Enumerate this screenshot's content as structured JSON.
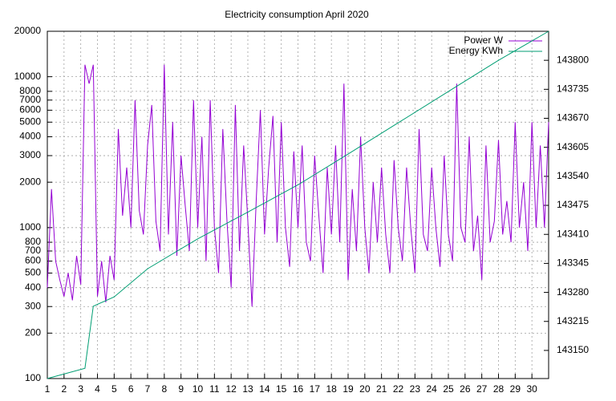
{
  "chart_data": {
    "type": "line",
    "title": "Electricity consumption April 2020",
    "xlim": [
      1,
      31
    ],
    "xticks": [
      1,
      2,
      3,
      4,
      5,
      6,
      7,
      8,
      9,
      10,
      11,
      12,
      13,
      14,
      15,
      16,
      17,
      18,
      19,
      20,
      21,
      22,
      23,
      24,
      25,
      26,
      27,
      28,
      29,
      30
    ],
    "ylim": [
      100,
      20000
    ],
    "log_y": true,
    "yticks": [
      100,
      200,
      300,
      400,
      500,
      600,
      700,
      800,
      1000,
      2000,
      3000,
      4000,
      5000,
      6000,
      7000,
      8000,
      10000,
      20000
    ],
    "y2lim": [
      143087,
      143865
    ],
    "y2ticks": [
      143150,
      143215,
      143280,
      143345,
      143410,
      143475,
      143540,
      143605,
      143670,
      143735,
      143800
    ],
    "grid": true,
    "legend": "top-right",
    "series": [
      {
        "name": "Power W",
        "color": "#9400d3",
        "x": [
          1,
          1.25,
          1.5,
          1.75,
          2,
          2.25,
          2.5,
          2.75,
          3,
          3.25,
          3.5,
          3.75,
          4,
          4.25,
          4.5,
          4.75,
          5,
          5.25,
          5.5,
          5.75,
          6,
          6.25,
          6.5,
          6.75,
          7,
          7.25,
          7.5,
          7.75,
          8,
          8.25,
          8.5,
          8.75,
          9,
          9.25,
          9.5,
          9.75,
          10,
          10.25,
          10.5,
          10.75,
          11,
          11.25,
          11.5,
          11.75,
          12,
          12.25,
          12.5,
          12.75,
          13,
          13.25,
          13.5,
          13.75,
          14,
          14.25,
          14.5,
          14.75,
          15,
          15.25,
          15.5,
          15.75,
          16,
          16.25,
          16.5,
          16.75,
          17,
          17.25,
          17.5,
          17.75,
          18,
          18.25,
          18.5,
          18.75,
          19,
          19.25,
          19.5,
          19.75,
          20,
          20.25,
          20.5,
          20.75,
          21,
          21.25,
          21.5,
          21.75,
          22,
          22.25,
          22.5,
          22.75,
          23,
          23.25,
          23.5,
          23.75,
          24,
          24.25,
          24.5,
          24.75,
          25,
          25.25,
          25.5,
          25.75,
          26,
          26.25,
          26.5,
          26.75,
          27,
          27.25,
          27.5,
          27.75,
          28,
          28.25,
          28.5,
          28.75,
          29,
          29.25,
          29.5,
          29.75,
          30,
          30.25,
          30.5,
          30.75,
          31
        ],
        "values": [
          400,
          1800,
          600,
          450,
          350,
          500,
          330,
          650,
          420,
          12000,
          9000,
          12000,
          350,
          600,
          320,
          650,
          450,
          4500,
          1200,
          2500,
          1000,
          7000,
          1300,
          900,
          3500,
          6500,
          1100,
          700,
          12000,
          900,
          5000,
          650,
          3000,
          1400,
          700,
          7000,
          1000,
          4000,
          600,
          7000,
          1000,
          500,
          4500,
          1100,
          400,
          6500,
          700,
          3500,
          1100,
          300,
          1500,
          6000,
          900,
          2500,
          5500,
          800,
          5000,
          1000,
          550,
          3200,
          1000,
          3500,
          800,
          600,
          3000,
          1200,
          500,
          2500,
          900,
          3500,
          800,
          9000,
          450,
          1800,
          700,
          4000,
          1000,
          500,
          2000,
          800,
          2500,
          900,
          500,
          2800,
          1000,
          600,
          2500,
          1000,
          500,
          4500,
          900,
          700,
          2500,
          1000,
          550,
          3000,
          900,
          600,
          9000,
          1000,
          800,
          4000,
          700,
          1200,
          450,
          3500,
          800,
          1100,
          3800,
          900,
          1500,
          800,
          5000,
          1000,
          2000,
          700,
          5000,
          1000,
          3500,
          1000,
          5000
        ]
      },
      {
        "name": "Energy KWh",
        "color": "#009e73",
        "axis": "y2",
        "x": [
          1,
          3.25,
          3.75,
          5,
          7,
          10,
          13,
          16,
          19,
          22,
          25,
          28,
          31
        ],
        "values": [
          143087,
          143110,
          143249,
          143270,
          143333,
          143400,
          143460,
          143521,
          143590,
          143660,
          143730,
          143800,
          143865
        ]
      }
    ]
  }
}
